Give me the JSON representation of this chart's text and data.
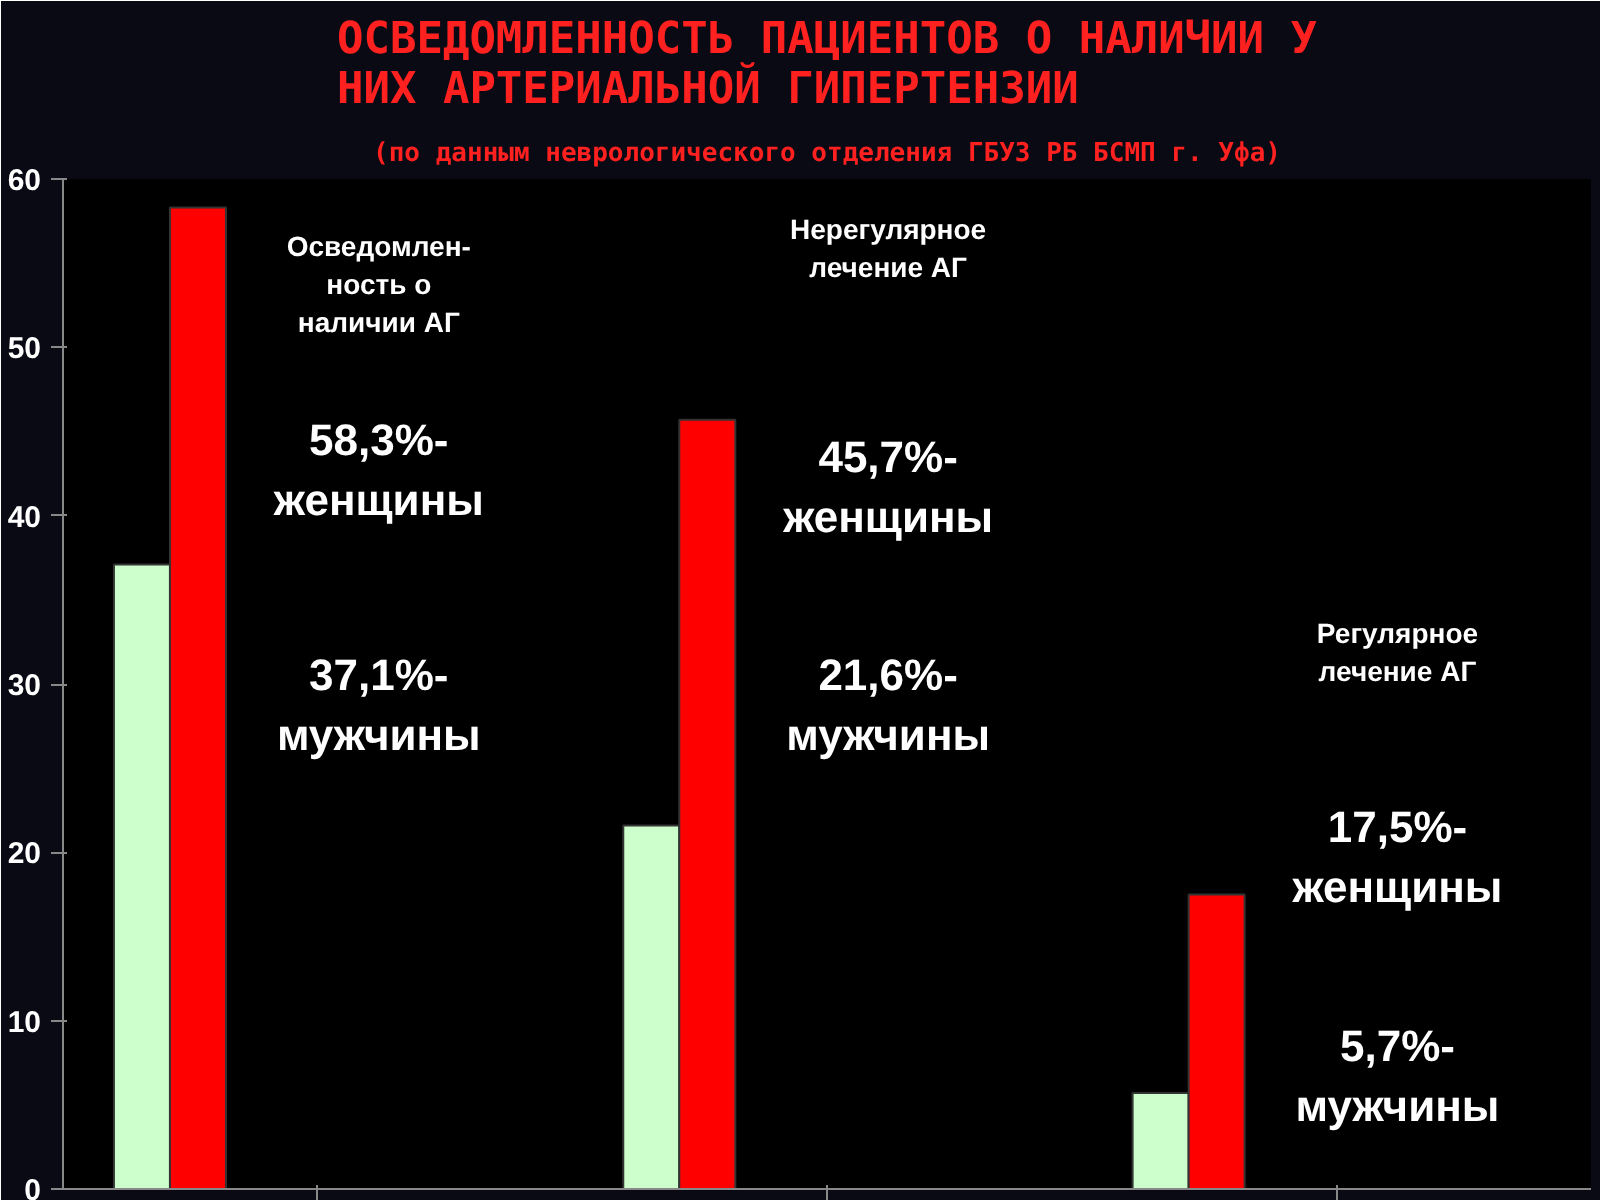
{
  "chart_data": {
    "type": "bar",
    "title": "ОСВЕДОМЛЕННОСТЬ ПАЦИЕНТОВ О НАЛИЧИИ У\nНИХ АРТЕРИАЛЬНОЙ ГИПЕРТЕНЗИИ",
    "subtitle": "(по данным неврологического отделения ГБУЗ РБ БСМП г. Уфа)",
    "categories": [
      null,
      null,
      null
    ],
    "series": [
      {
        "color": "#ccffcc",
        "values": [
          37.1,
          21.6,
          5.7
        ]
      },
      {
        "color": "#ff0000",
        "values": [
          58.3,
          45.7,
          17.5
        ]
      }
    ],
    "ylim": [
      0,
      60
    ],
    "yticks": [
      0,
      10,
      20,
      30,
      40,
      50,
      60
    ],
    "grid": false,
    "annotations": [
      "Осведомлен-\nность о\nналичии АГ",
      "58,3%-\nженщины",
      "37,1%-\nмужчины",
      "Нерегулярное\nлечение АГ",
      "45,7%-\nженщины",
      "21,6%-\nмужчины",
      "Регулярное\nлечение АГ",
      "17,5%-\nженщины",
      "5,7%-\nмужчины"
    ]
  }
}
